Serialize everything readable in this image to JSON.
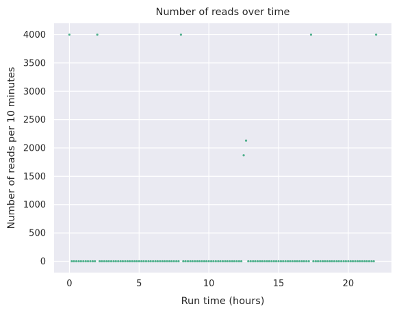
{
  "chart_data": {
    "type": "scatter",
    "title": "Number of reads over time",
    "xlabel": "Run time (hours)",
    "ylabel": "Number of reads per 10 minutes",
    "xlim": [
      -1.1,
      23.1
    ],
    "ylim": [
      -200,
      4200
    ],
    "xticks": [
      0,
      5,
      10,
      15,
      20
    ],
    "xtick_labels": [
      "0",
      "5",
      "10",
      "15",
      "20"
    ],
    "yticks": [
      0,
      500,
      1000,
      1500,
      2000,
      2500,
      3000,
      3500,
      4000
    ],
    "ytick_labels": [
      "0",
      "500",
      "1000",
      "1500",
      "2000",
      "2500",
      "3000",
      "3500",
      "4000"
    ],
    "grid": true,
    "colors": {
      "point": "#4fb08c",
      "background": "#eaeaf2",
      "grid": "#ffffff"
    },
    "series": [
      {
        "points": [
          [
            0,
            4000
          ],
          [
            0.17,
            0
          ],
          [
            0.33,
            0
          ],
          [
            0.5,
            0
          ],
          [
            0.67,
            0
          ],
          [
            0.83,
            0
          ],
          [
            1.0,
            0
          ],
          [
            1.17,
            0
          ],
          [
            1.33,
            0
          ],
          [
            1.5,
            0
          ],
          [
            1.67,
            0
          ],
          [
            1.83,
            0
          ],
          [
            2.0,
            4000
          ],
          [
            2.17,
            0
          ],
          [
            2.33,
            0
          ],
          [
            2.5,
            0
          ],
          [
            2.67,
            0
          ],
          [
            2.83,
            0
          ],
          [
            3.0,
            0
          ],
          [
            3.17,
            0
          ],
          [
            3.33,
            0
          ],
          [
            3.5,
            0
          ],
          [
            3.67,
            0
          ],
          [
            3.83,
            0
          ],
          [
            4.0,
            0
          ],
          [
            4.17,
            0
          ],
          [
            4.33,
            0
          ],
          [
            4.5,
            0
          ],
          [
            4.67,
            0
          ],
          [
            4.83,
            0
          ],
          [
            5.0,
            0
          ],
          [
            5.17,
            0
          ],
          [
            5.33,
            0
          ],
          [
            5.5,
            0
          ],
          [
            5.67,
            0
          ],
          [
            5.83,
            0
          ],
          [
            6.0,
            0
          ],
          [
            6.17,
            0
          ],
          [
            6.33,
            0
          ],
          [
            6.5,
            0
          ],
          [
            6.67,
            0
          ],
          [
            6.83,
            0
          ],
          [
            7.0,
            0
          ],
          [
            7.17,
            0
          ],
          [
            7.33,
            0
          ],
          [
            7.5,
            0
          ],
          [
            7.67,
            0
          ],
          [
            7.83,
            0
          ],
          [
            8.0,
            4000
          ],
          [
            8.17,
            0
          ],
          [
            8.33,
            0
          ],
          [
            8.5,
            0
          ],
          [
            8.67,
            0
          ],
          [
            8.83,
            0
          ],
          [
            9.0,
            0
          ],
          [
            9.17,
            0
          ],
          [
            9.33,
            0
          ],
          [
            9.5,
            0
          ],
          [
            9.67,
            0
          ],
          [
            9.83,
            0
          ],
          [
            10.0,
            0
          ],
          [
            10.17,
            0
          ],
          [
            10.33,
            0
          ],
          [
            10.5,
            0
          ],
          [
            10.67,
            0
          ],
          [
            10.83,
            0
          ],
          [
            11.0,
            0
          ],
          [
            11.17,
            0
          ],
          [
            11.33,
            0
          ],
          [
            11.5,
            0
          ],
          [
            11.67,
            0
          ],
          [
            11.83,
            0
          ],
          [
            12.0,
            0
          ],
          [
            12.17,
            0
          ],
          [
            12.33,
            0
          ],
          [
            12.5,
            1870
          ],
          [
            12.67,
            2130
          ],
          [
            12.83,
            0
          ],
          [
            13.0,
            0
          ],
          [
            13.17,
            0
          ],
          [
            13.33,
            0
          ],
          [
            13.5,
            0
          ],
          [
            13.67,
            0
          ],
          [
            13.83,
            0
          ],
          [
            14.0,
            0
          ],
          [
            14.17,
            0
          ],
          [
            14.33,
            0
          ],
          [
            14.5,
            0
          ],
          [
            14.67,
            0
          ],
          [
            14.83,
            0
          ],
          [
            15.0,
            0
          ],
          [
            15.17,
            0
          ],
          [
            15.33,
            0
          ],
          [
            15.5,
            0
          ],
          [
            15.67,
            0
          ],
          [
            15.83,
            0
          ],
          [
            16.0,
            0
          ],
          [
            16.17,
            0
          ],
          [
            16.33,
            0
          ],
          [
            16.5,
            0
          ],
          [
            16.67,
            0
          ],
          [
            16.83,
            0
          ],
          [
            17.0,
            0
          ],
          [
            17.17,
            0
          ],
          [
            17.33,
            4000
          ],
          [
            17.5,
            0
          ],
          [
            17.67,
            0
          ],
          [
            17.83,
            0
          ],
          [
            18.0,
            0
          ],
          [
            18.17,
            0
          ],
          [
            18.33,
            0
          ],
          [
            18.5,
            0
          ],
          [
            18.67,
            0
          ],
          [
            18.83,
            0
          ],
          [
            19.0,
            0
          ],
          [
            19.17,
            0
          ],
          [
            19.33,
            0
          ],
          [
            19.5,
            0
          ],
          [
            19.67,
            0
          ],
          [
            19.83,
            0
          ],
          [
            20.0,
            0
          ],
          [
            20.17,
            0
          ],
          [
            20.33,
            0
          ],
          [
            20.5,
            0
          ],
          [
            20.67,
            0
          ],
          [
            20.83,
            0
          ],
          [
            21.0,
            0
          ],
          [
            21.17,
            0
          ],
          [
            21.33,
            0
          ],
          [
            21.5,
            0
          ],
          [
            21.67,
            0
          ],
          [
            21.83,
            0
          ],
          [
            22.0,
            4000
          ]
        ]
      }
    ]
  }
}
